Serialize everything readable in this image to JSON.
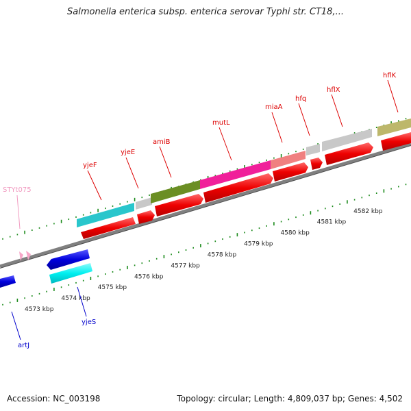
{
  "header": {
    "title": "Salmonella enterica subsp. enterica serovar Typhi str. CT18,..."
  },
  "footer": {
    "accession": "Accession: NC_003198",
    "summary": "Topology: circular; Length: 4,809,037 bp; Genes: 4,502"
  },
  "map": {
    "scale_labels": [
      {
        "text": "4573 kbp",
        "kbp": 4573
      },
      {
        "text": "4574 kbp",
        "kbp": 4574
      },
      {
        "text": "4575 kbp",
        "kbp": 4575
      },
      {
        "text": "4576 kbp",
        "kbp": 4576
      },
      {
        "text": "4577 kbp",
        "kbp": 4577
      },
      {
        "text": "4578 kbp",
        "kbp": 4578
      },
      {
        "text": "4579 kbp",
        "kbp": 4579
      },
      {
        "text": "4580 kbp",
        "kbp": 4580
      },
      {
        "text": "4581 kbp",
        "kbp": 4581
      },
      {
        "text": "4582 kbp",
        "kbp": 4582
      }
    ],
    "gene_labels_top": [
      {
        "name": "STYt075",
        "color": "#f19ac0"
      },
      {
        "name": "yjeF",
        "color": "#dd0000"
      },
      {
        "name": "yjeE",
        "color": "#dd0000"
      },
      {
        "name": "amiB",
        "color": "#dd0000"
      },
      {
        "name": "mutL",
        "color": "#dd0000"
      },
      {
        "name": "miaA",
        "color": "#dd0000"
      },
      {
        "name": "hfq",
        "color": "#dd0000"
      },
      {
        "name": "hflX",
        "color": "#dd0000"
      },
      {
        "name": "hflK",
        "color": "#dd0000"
      }
    ],
    "gene_labels_bottom": [
      {
        "name": "artJ",
        "color": "#0000cc"
      },
      {
        "name": "yjeS",
        "color": "#0000cc"
      }
    ],
    "colors": {
      "backbone": "#808080",
      "cds_forward": "#ee0000",
      "cds_reverse": "#0000dd",
      "tick": "#1a8a1a",
      "trna": "#f7a6c8",
      "yjeF_feature": "#29c6cc",
      "yjeE_feature": "#c8c8c8",
      "amiB_feature": "#6b8e23",
      "mutL_feature": "#f0209a",
      "miaA_feature": "#f08080",
      "hfq_feature": "#c8c8c8",
      "hflX_feature": "#c8c8c8",
      "hflK_feature": "#bdb76b",
      "yjeS_feature": "#00f0f0"
    }
  }
}
